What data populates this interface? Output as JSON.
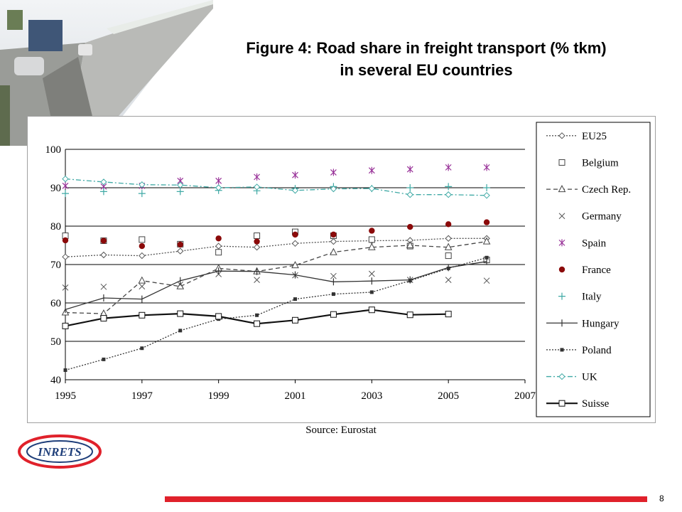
{
  "slide": {
    "title_line1": "Figure 4: Road share in freight transport (% tkm)",
    "title_line2": "in several EU countries",
    "source": "Source: Eurostat",
    "page_number": "8",
    "logo_text": "INRETS",
    "accent_color": "#e0212b"
  },
  "chart_data": {
    "type": "line",
    "x": [
      1995,
      1996,
      1997,
      1998,
      1999,
      2000,
      2001,
      2002,
      2003,
      2004,
      2005,
      2006
    ],
    "xlim": [
      1995,
      2007
    ],
    "ylim": [
      40,
      100
    ],
    "xticks": [
      "1995",
      "1997",
      "1999",
      "2001",
      "2003",
      "2005",
      "2007"
    ],
    "yticks": [
      "40",
      "50",
      "60",
      "70",
      "80",
      "90",
      "100"
    ],
    "grid": "horizontal",
    "legend_position": "right",
    "series": [
      {
        "name": "EU25",
        "marker": "diamond",
        "line": "dotted",
        "color": "#555555",
        "values": [
          72,
          72.5,
          72.3,
          73.5,
          74.8,
          74.5,
          75.5,
          76,
          76.2,
          76.3,
          76.8,
          76.8
        ]
      },
      {
        "name": "Belgium",
        "marker": "square",
        "line": "none",
        "color": "#444444",
        "values": [
          77.5,
          76.2,
          76.5,
          75.3,
          73.2,
          77.5,
          78.5,
          77.5,
          76.5,
          74.8,
          72.3,
          71.2
        ]
      },
      {
        "name": "Czech Rep.",
        "marker": "triangle",
        "line": "dashed",
        "color": "#444444",
        "values": [
          57.5,
          57.2,
          65.8,
          64.3,
          69,
          68.2,
          69.8,
          73.2,
          74.5,
          75,
          74.5,
          76
        ]
      },
      {
        "name": "Germany",
        "marker": "x",
        "line": "none",
        "color": "#555555",
        "values": [
          64,
          64.2,
          64.3,
          64.8,
          67.5,
          66,
          67.2,
          67,
          67.6,
          66,
          66,
          65.8
        ]
      },
      {
        "name": "Spain",
        "marker": "asterisk",
        "line": "none",
        "color": "#993399",
        "values": [
          90.5,
          90.3,
          90.5,
          91.8,
          91.8,
          92.8,
          93.3,
          94,
          94.5,
          94.8,
          95.3,
          95.3
        ]
      },
      {
        "name": "France",
        "marker": "dot",
        "line": "none",
        "color": "#8b0a0a",
        "values": [
          76.3,
          76.2,
          74.8,
          75.2,
          76.8,
          76,
          77.8,
          77.8,
          78.8,
          79.8,
          80.5,
          81
        ]
      },
      {
        "name": "Italy",
        "marker": "plus",
        "line": "none",
        "color": "#3fa9a5",
        "values": [
          88.5,
          89,
          88.5,
          89,
          89.3,
          89.2,
          89.8,
          90.3,
          89.8,
          90,
          90.3,
          90
        ]
      },
      {
        "name": "Hungary",
        "marker": "plus",
        "line": "solid",
        "color": "#333333",
        "values": [
          58.3,
          61.3,
          61,
          65.8,
          68.3,
          68.2,
          67.3,
          65.5,
          65.7,
          66,
          69.2,
          70.8
        ]
      },
      {
        "name": "Poland",
        "marker": "smallsquare",
        "line": "dotted",
        "color": "#333333",
        "values": [
          42.5,
          45.3,
          48.2,
          52.8,
          55.8,
          56.8,
          61,
          62.3,
          62.8,
          65.8,
          69,
          71.8
        ]
      },
      {
        "name": "UK",
        "marker": "diamond",
        "line": "dashdot",
        "color": "#3fa9a5",
        "values": [
          92.3,
          91.5,
          90.8,
          90.7,
          90,
          90.2,
          89.3,
          89.7,
          89.8,
          88.2,
          88.2,
          88
        ]
      },
      {
        "name": "Suisse",
        "marker": "square",
        "line": "solid-bold",
        "color": "#111111",
        "values": [
          54,
          56,
          56.8,
          57.2,
          56.5,
          54.6,
          55.5,
          57,
          58.2,
          56.9,
          57.1,
          null
        ]
      }
    ]
  }
}
